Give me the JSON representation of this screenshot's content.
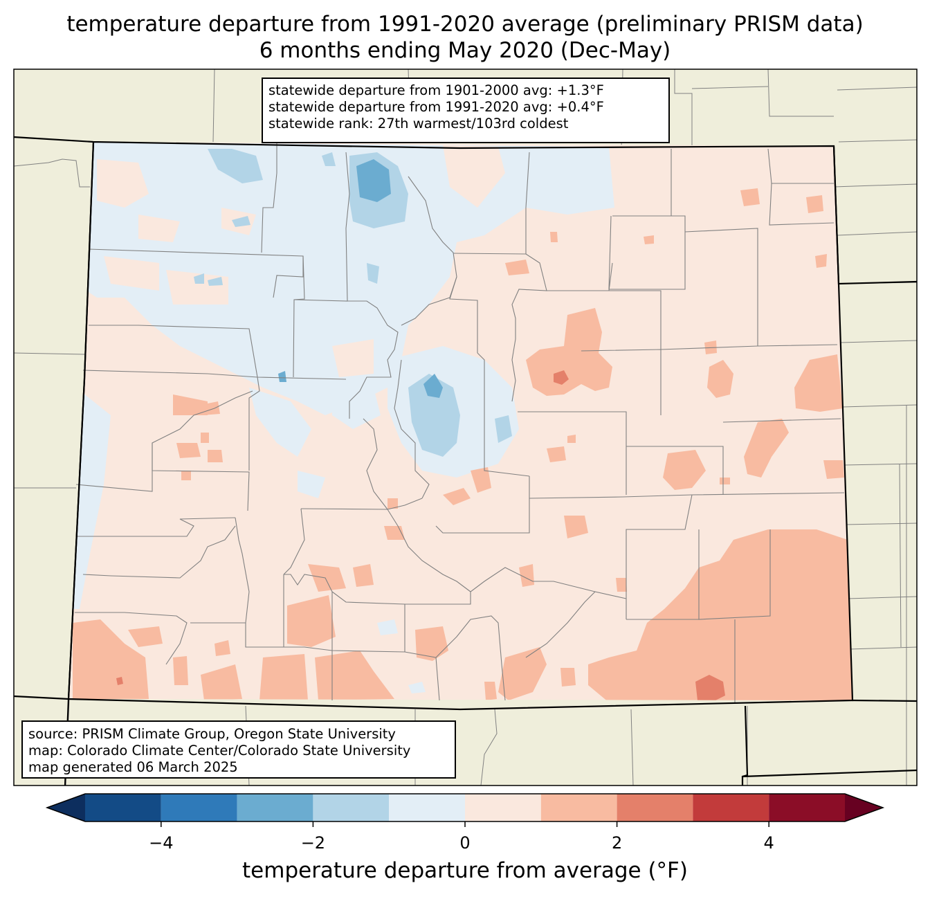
{
  "title": {
    "line1": "temperature departure from 1991-2020 average (preliminary PRISM data)",
    "line2": "6 months ending May 2020 (Dec-May)"
  },
  "stats": {
    "line1": "statewide departure from 1901-2000 avg: +1.3°F",
    "line2": "statewide departure from 1991-2020 avg: +0.4°F",
    "line3": "statewide rank: 27th warmest/103rd coldest"
  },
  "credits": {
    "line1": "source: PRISM Climate Group, Oregon State University",
    "line2": "map: Colorado Climate Center/Colorado State University",
    "line3": "map generated 06 March 2025"
  },
  "colorbar": {
    "label": "temperature departure from average (°F)",
    "ticks": [
      "−4",
      "−2",
      "0",
      "2",
      "4"
    ],
    "tick_values": [
      -4,
      -2,
      0,
      2,
      4
    ],
    "range": [
      -5,
      5
    ],
    "bins": [
      {
        "from": -5,
        "to": -4,
        "color": "#134b86"
      },
      {
        "from": -4,
        "to": -3,
        "color": "#2f7ab9"
      },
      {
        "from": -3,
        "to": -2,
        "color": "#6bacd0"
      },
      {
        "from": -2,
        "to": -1,
        "color": "#b2d4e7"
      },
      {
        "from": -1,
        "to": 0,
        "color": "#e3eef6"
      },
      {
        "from": 0,
        "to": 1,
        "color": "#fae8de"
      },
      {
        "from": 1,
        "to": 2,
        "color": "#f8bba1"
      },
      {
        "from": 2,
        "to": 3,
        "color": "#e4806a"
      },
      {
        "from": 3,
        "to": 4,
        "color": "#c23b3b"
      },
      {
        "from": 4,
        "to": 5,
        "color": "#8b0d27"
      }
    ],
    "under_color": "#0d2e5e",
    "over_color": "#670121"
  },
  "map": {
    "background_land": "#efeedb",
    "state_border_color": "#000000",
    "county_line_color": "#808080"
  }
}
